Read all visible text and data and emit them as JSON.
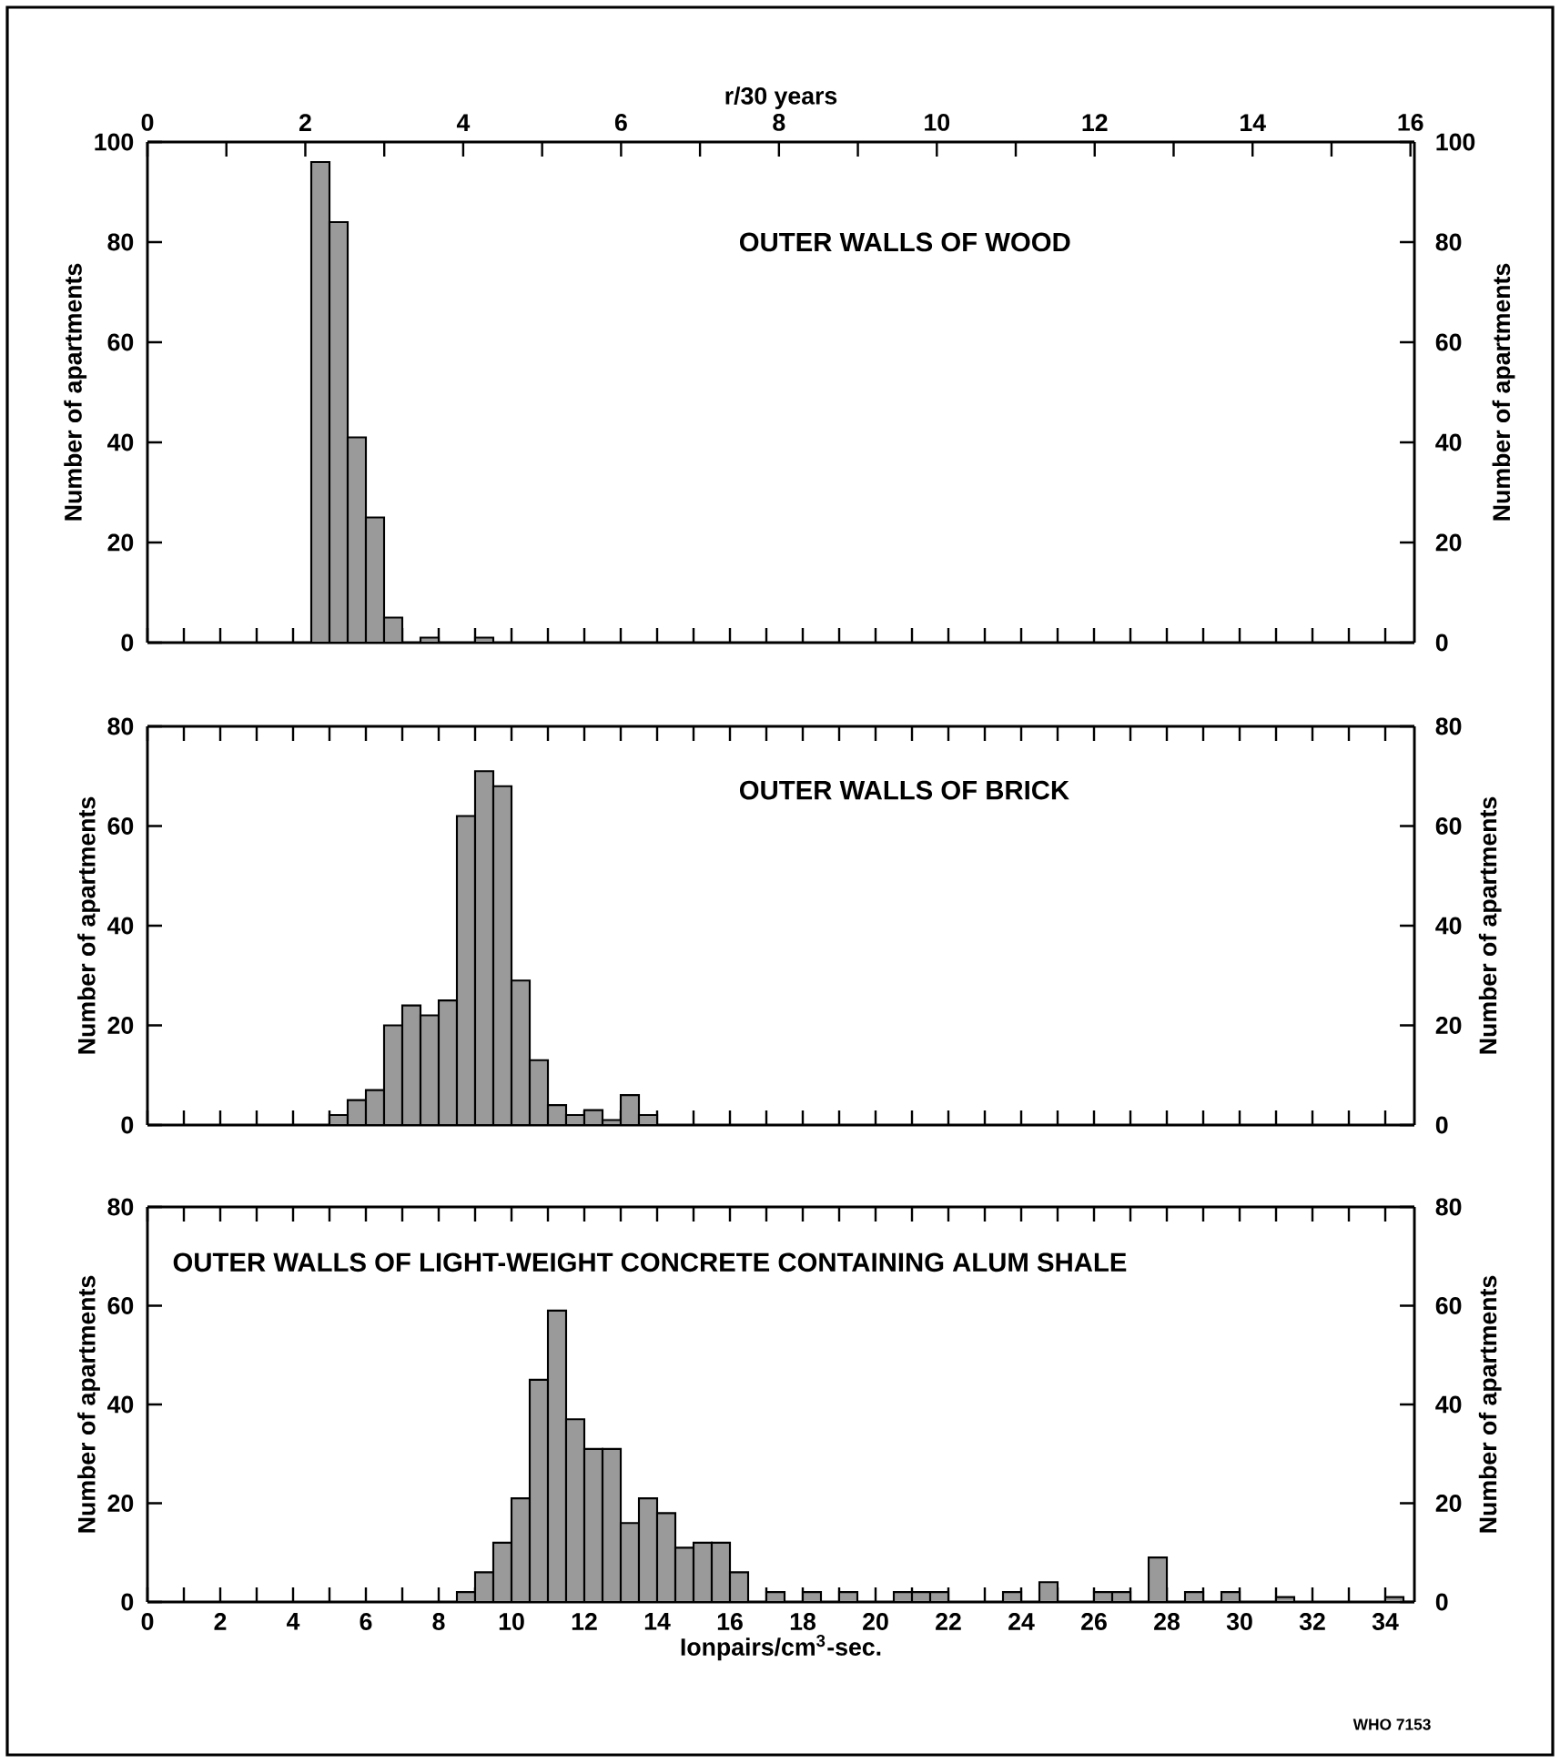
{
  "chart_data": [
    {
      "type": "histogram",
      "title": "OUTER WALLS OF WOOD",
      "x2label": "r/30 years",
      "ylabel": "Number of apartments",
      "y2label": "Number of apartments",
      "color": "#9a9a9a",
      "bins": [
        4.5,
        5,
        5.5,
        6,
        6.5,
        7,
        7.5,
        8,
        8.5,
        9,
        9.5
      ],
      "values": [
        96,
        84,
        41,
        25,
        5,
        0,
        1,
        0,
        0,
        1
      ],
      "xlim": [
        0,
        34.8
      ],
      "xticks": [
        {
          "value": 0,
          "label": null
        },
        {
          "value": 1,
          "label": null
        },
        {
          "value": 2,
          "label": null
        },
        {
          "value": 3,
          "label": null
        },
        {
          "value": 4,
          "label": null
        },
        {
          "value": 5,
          "label": null
        },
        {
          "value": 6,
          "label": null
        },
        {
          "value": 7,
          "label": null
        },
        {
          "value": 8,
          "label": null
        },
        {
          "value": 9,
          "label": null
        },
        {
          "value": 10,
          "label": null
        },
        {
          "value": 11,
          "label": null
        },
        {
          "value": 12,
          "label": null
        },
        {
          "value": 13,
          "label": null
        },
        {
          "value": 14,
          "label": null
        },
        {
          "value": 15,
          "label": null
        },
        {
          "value": 16,
          "label": null
        },
        {
          "value": 17,
          "label": null
        },
        {
          "value": 18,
          "label": null
        },
        {
          "value": 19,
          "label": null
        },
        {
          "value": 20,
          "label": null
        },
        {
          "value": 21,
          "label": null
        },
        {
          "value": 22,
          "label": null
        },
        {
          "value": 23,
          "label": null
        },
        {
          "value": 24,
          "label": null
        },
        {
          "value": 25,
          "label": null
        },
        {
          "value": 26,
          "label": null
        },
        {
          "value": 27,
          "label": null
        },
        {
          "value": 28,
          "label": null
        },
        {
          "value": 29,
          "label": null
        },
        {
          "value": 30,
          "label": null
        },
        {
          "value": 31,
          "label": null
        },
        {
          "value": 32,
          "label": null
        },
        {
          "value": 33,
          "label": null
        },
        {
          "value": 34,
          "label": null
        }
      ],
      "x2lim": [
        0,
        16.05
      ],
      "x2ticks": [
        0,
        {
          "value": 1,
          "label": null
        },
        2,
        {
          "value": 3,
          "label": null
        },
        4,
        {
          "value": 5,
          "label": null
        },
        6,
        {
          "value": 7,
          "label": null
        },
        8,
        {
          "value": 9,
          "label": null
        },
        10,
        {
          "value": 11,
          "label": null
        },
        12,
        {
          "value": 13,
          "label": null
        },
        14,
        {
          "value": 15,
          "label": null
        },
        16
      ],
      "ylim": [
        0,
        100
      ],
      "yticks": [
        0,
        20,
        40,
        60,
        80,
        100
      ],
      "y2lim": [
        0,
        100
      ],
      "y2ticks": [
        0,
        20,
        40,
        60,
        80,
        100
      ],
      "tick_labels": "y"
    },
    {
      "type": "histogram",
      "title": "OUTER WALLS OF BRICK",
      "ylabel": "Number of apartments",
      "y2label": "Number of apartments",
      "color": "#9a9a9a",
      "bins": [
        5,
        5.5,
        6,
        6.5,
        7,
        7.5,
        8,
        8.5,
        9,
        9.5,
        10,
        10.5,
        11,
        11.5,
        12,
        12.5,
        13,
        13.5,
        14
      ],
      "values": [
        2,
        5,
        7,
        20,
        24,
        22,
        25,
        62,
        71,
        68,
        29,
        13,
        4,
        2,
        3,
        1,
        6,
        2
      ],
      "xlim": [
        0,
        34.8
      ],
      "xticks": [
        {
          "value": 0,
          "label": null
        },
        {
          "value": 1,
          "label": null
        },
        {
          "value": 2,
          "label": null
        },
        {
          "value": 3,
          "label": null
        },
        {
          "value": 4,
          "label": null
        },
        {
          "value": 5,
          "label": null
        },
        {
          "value": 6,
          "label": null
        },
        {
          "value": 7,
          "label": null
        },
        {
          "value": 8,
          "label": null
        },
        {
          "value": 9,
          "label": null
        },
        {
          "value": 10,
          "label": null
        },
        {
          "value": 11,
          "label": null
        },
        {
          "value": 12,
          "label": null
        },
        {
          "value": 13,
          "label": null
        },
        {
          "value": 14,
          "label": null
        },
        {
          "value": 15,
          "label": null
        },
        {
          "value": 16,
          "label": null
        },
        {
          "value": 17,
          "label": null
        },
        {
          "value": 18,
          "label": null
        },
        {
          "value": 19,
          "label": null
        },
        {
          "value": 20,
          "label": null
        },
        {
          "value": 21,
          "label": null
        },
        {
          "value": 22,
          "label": null
        },
        {
          "value": 23,
          "label": null
        },
        {
          "value": 24,
          "label": null
        },
        {
          "value": 25,
          "label": null
        },
        {
          "value": 26,
          "label": null
        },
        {
          "value": 27,
          "label": null
        },
        {
          "value": 28,
          "label": null
        },
        {
          "value": 29,
          "label": null
        },
        {
          "value": 30,
          "label": null
        },
        {
          "value": 31,
          "label": null
        },
        {
          "value": 32,
          "label": null
        },
        {
          "value": 33,
          "label": null
        },
        {
          "value": 34,
          "label": null
        }
      ],
      "ylim": [
        0,
        80
      ],
      "yticks": [
        0,
        20,
        40,
        60,
        80
      ],
      "y2lim": [
        0,
        80
      ],
      "y2ticks": [
        0,
        20,
        40,
        60,
        80
      ],
      "tick_labels": "y"
    },
    {
      "type": "histogram",
      "title": "OUTER WALLS OF LIGHT-WEIGHT CONCRETE CONTAINING ALUM SHALE",
      "xlabel": "Ionpairs/cm$^{3}$-sec.",
      "ylabel": "Number of apartments",
      "y2label": "Number of apartments",
      "color": "#9a9a9a",
      "bins": [
        8.5,
        9,
        9.5,
        10,
        10.5,
        11,
        11.5,
        12,
        12.5,
        13,
        13.5,
        14,
        14.5,
        15,
        15.5,
        16,
        16.5,
        17,
        17.5,
        18,
        18.5,
        19,
        19.5,
        20,
        20.5,
        21,
        21.5,
        22,
        22.5,
        23,
        23.5,
        24,
        24.5,
        25,
        25.5,
        26,
        26.5,
        27,
        27.5,
        28,
        28.5,
        29,
        29.5,
        30,
        30.5,
        31,
        31.5,
        32,
        32.5,
        33,
        33.5,
        34,
        34.5
      ],
      "values": [
        2,
        6,
        12,
        21,
        45,
        59,
        37,
        31,
        31,
        16,
        21,
        18,
        11,
        12,
        12,
        6,
        0,
        2,
        0,
        2,
        0,
        2,
        0,
        0,
        2,
        2,
        2,
        0,
        0,
        0,
        2,
        0,
        4,
        0,
        0,
        2,
        2,
        0,
        9,
        0,
        2,
        0,
        2,
        0,
        0,
        1,
        0,
        0,
        0,
        0,
        0,
        1
      ],
      "xlim": [
        0,
        34.8
      ],
      "xticks": [
        0,
        {
          "value": 1,
          "label": null
        },
        2,
        {
          "value": 3,
          "label": null
        },
        4,
        {
          "value": 5,
          "label": null
        },
        6,
        {
          "value": 7,
          "label": null
        },
        8,
        {
          "value": 9,
          "label": null
        },
        10,
        {
          "value": 11,
          "label": null
        },
        12,
        {
          "value": 13,
          "label": null
        },
        14,
        {
          "value": 15,
          "label": null
        },
        16,
        {
          "value": 17,
          "label": null
        },
        18,
        {
          "value": 19,
          "label": null
        },
        20,
        {
          "value": 21,
          "label": null
        },
        22,
        {
          "value": 23,
          "label": null
        },
        24,
        {
          "value": 25,
          "label": null
        },
        26,
        {
          "value": 27,
          "label": null
        },
        28,
        {
          "value": 29,
          "label": null
        },
        30,
        {
          "value": 31,
          "label": null
        },
        32,
        {
          "value": 33,
          "label": null
        },
        34
      ],
      "ylim": [
        0,
        80
      ],
      "yticks": [
        0,
        20,
        40,
        60,
        80
      ],
      "y2lim": [
        0,
        80
      ],
      "y2ticks": [
        0,
        20,
        40,
        60,
        80
      ],
      "annotations": [
        "WHO 7153"
      ]
    }
  ]
}
